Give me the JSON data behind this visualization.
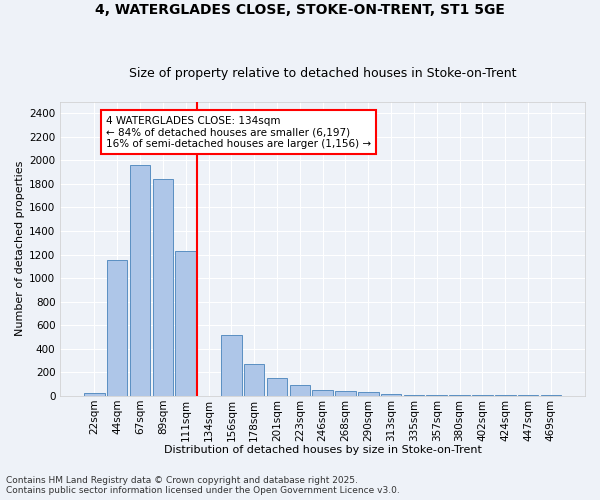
{
  "title1": "4, WATERGLADES CLOSE, STOKE-ON-TRENT, ST1 5GE",
  "title2": "Size of property relative to detached houses in Stoke-on-Trent",
  "xlabel": "Distribution of detached houses by size in Stoke-on-Trent",
  "ylabel": "Number of detached properties",
  "categories": [
    "22sqm",
    "44sqm",
    "67sqm",
    "89sqm",
    "111sqm",
    "134sqm",
    "156sqm",
    "178sqm",
    "201sqm",
    "223sqm",
    "246sqm",
    "268sqm",
    "290sqm",
    "313sqm",
    "335sqm",
    "357sqm",
    "380sqm",
    "402sqm",
    "424sqm",
    "447sqm",
    "469sqm"
  ],
  "values": [
    25,
    1155,
    1960,
    1845,
    1230,
    0,
    515,
    270,
    155,
    90,
    50,
    40,
    30,
    20,
    5,
    5,
    5,
    5,
    5,
    5,
    5
  ],
  "bar_color": "#aec6e8",
  "bar_edge_color": "#5a8fc2",
  "vline_color": "red",
  "vline_x_index": 5,
  "annotation_text": "4 WATERGLADES CLOSE: 134sqm\n← 84% of detached houses are smaller (6,197)\n16% of semi-detached houses are larger (1,156) →",
  "annotation_box_color": "white",
  "annotation_box_edge_color": "red",
  "ylim": [
    0,
    2500
  ],
  "yticks": [
    0,
    200,
    400,
    600,
    800,
    1000,
    1200,
    1400,
    1600,
    1800,
    2000,
    2200,
    2400
  ],
  "footnote": "Contains HM Land Registry data © Crown copyright and database right 2025.\nContains public sector information licensed under the Open Government Licence v3.0.",
  "bg_color": "#eef2f8",
  "plot_bg_color": "#eef2f8",
  "grid_color": "white",
  "title_fontsize": 10,
  "subtitle_fontsize": 9,
  "axis_label_fontsize": 8,
  "tick_fontsize": 7.5,
  "annot_fontsize": 7.5,
  "footnote_fontsize": 6.5
}
